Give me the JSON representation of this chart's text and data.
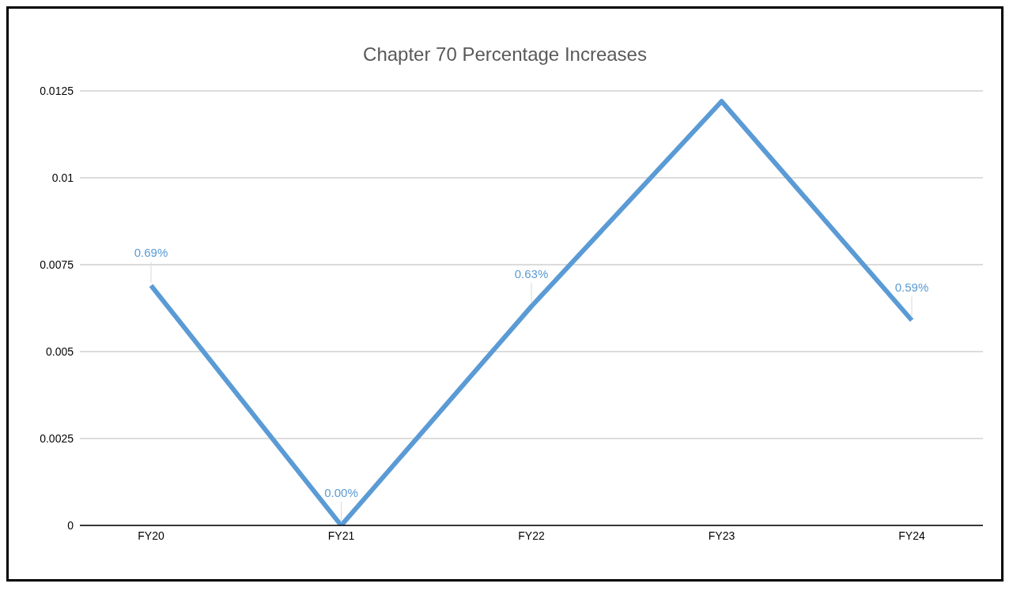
{
  "chart_data": {
    "type": "line",
    "title": "Chapter 70 Percentage Increases",
    "categories": [
      "FY20",
      "FY21",
      "FY22",
      "FY23",
      "FY24"
    ],
    "series": [
      {
        "color": "#5b9bd5",
        "values": [
          0.0069,
          0,
          0.0063,
          0.0122,
          0.0059
        ],
        "value_labels": [
          "0.69%",
          "0.00%",
          "0.63%",
          null,
          "0.59%"
        ]
      }
    ],
    "ylim": [
      0,
      0.0125
    ],
    "yticks": [
      0,
      0.0025,
      0.005,
      0.0075,
      0.01,
      0.0125
    ],
    "grid": "y",
    "marker": "none",
    "line_style": "solid"
  }
}
